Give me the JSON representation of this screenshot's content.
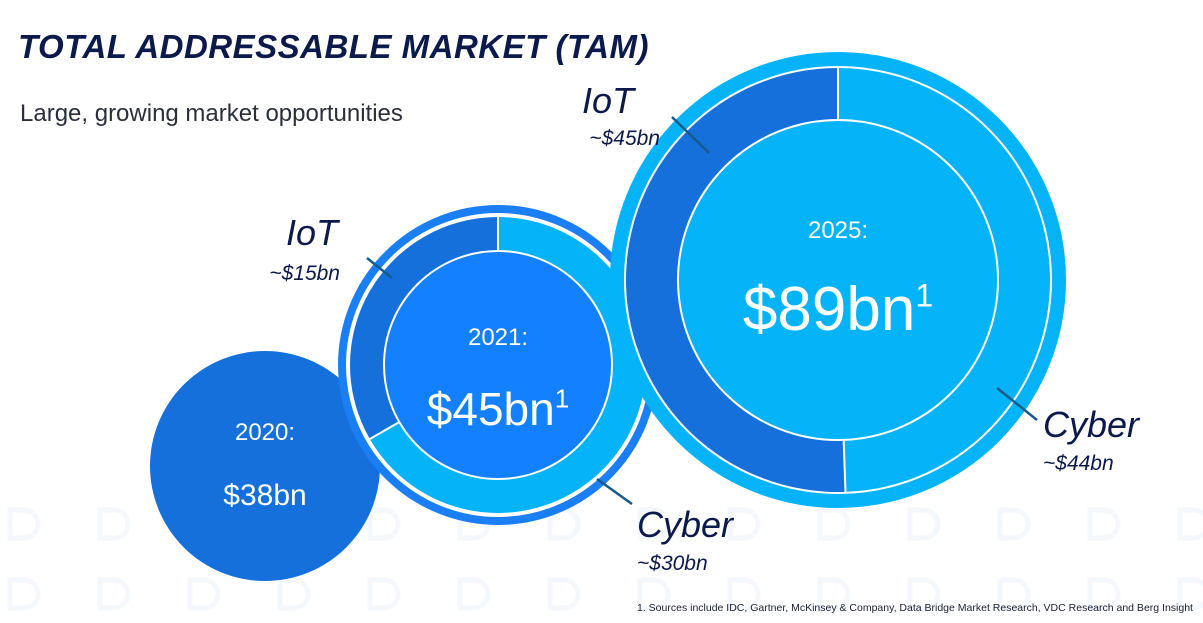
{
  "header": {
    "title": "TOTAL ADDRESSABLE MARKET (TAM)",
    "subtitle": "Large, growing market opportunities"
  },
  "footnote": "1. Sources include IDC, Gartner, McKinsey & Company, Data Bridge Market Research, VDC Research and Berg Insight",
  "colors": {
    "iot": "#1570db",
    "cyber": "#05b4f8",
    "inner_2020": "#1570db",
    "inner_2021": "#1280ff",
    "inner_2025": "#05b4f8",
    "ring_2021": "#1a7ff5",
    "ring_2025": "#05b4f8",
    "callout_text": "#0b1a4a",
    "callout_line": "#155a8a"
  },
  "chart_data": {
    "type": "pie",
    "title": "TOTAL ADDRESSABLE MARKET (TAM)",
    "unit": "bn",
    "years": [
      {
        "year_label": "2020:",
        "total_label": "$38bn",
        "total": 38,
        "segments": []
      },
      {
        "year_label": "2021:",
        "total_label": "$45bn",
        "superscript": "1",
        "total": 45,
        "segments": [
          {
            "name": "IoT",
            "value_label": "~$15bn",
            "value": 15
          },
          {
            "name": "Cyber",
            "value_label": "~$30bn",
            "value": 30
          }
        ]
      },
      {
        "year_label": "2025:",
        "total_label": "$89bn",
        "superscript": "1",
        "total": 89,
        "segments": [
          {
            "name": "IoT",
            "value_label": "~$45bn",
            "value": 45
          },
          {
            "name": "Cyber",
            "value_label": "~$44bn",
            "value": 44
          }
        ]
      }
    ]
  }
}
